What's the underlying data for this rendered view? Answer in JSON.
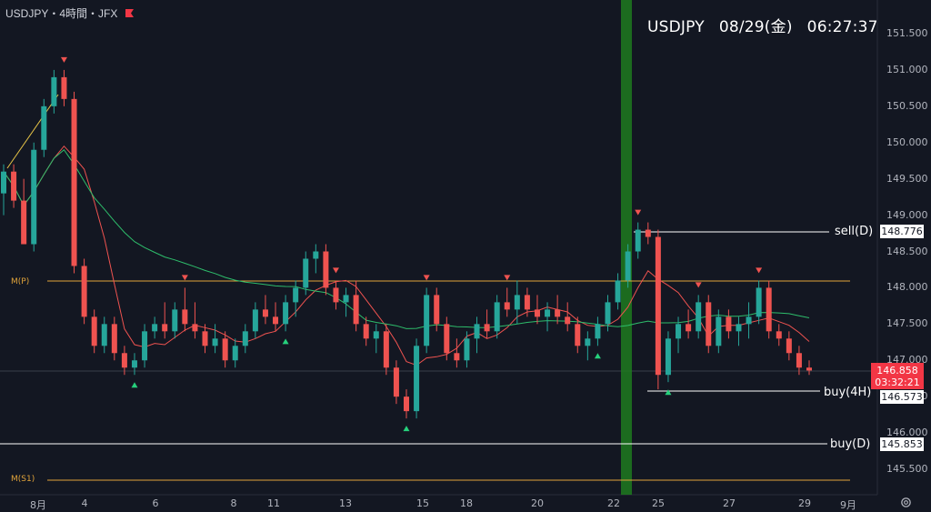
{
  "header": {
    "title": "USDJPY・4時間・JFX",
    "flag_icon": "flag-icon",
    "flag_color": "#f23645"
  },
  "clock": {
    "symbol": "USDJPY",
    "date": "08/29(金)",
    "time": "06:27:37"
  },
  "levels": {
    "sell_d": {
      "label": "sell(D)",
      "price": "148.776"
    },
    "buy_4h": {
      "label": "buy(4H)",
      "price": "146.573"
    },
    "buy_d": {
      "label": "buy(D)",
      "price": "145.853"
    },
    "m_p": {
      "label": "M(P)"
    },
    "m_s1": {
      "label": "M(S1)"
    }
  },
  "current": {
    "price": "146.858",
    "countdown": "03:32:21"
  },
  "y_axis": [
    "151.500",
    "151.000",
    "150.500",
    "150.000",
    "149.500",
    "149.000",
    "148.500",
    "148.000",
    "147.500",
    "147.000",
    "146.500",
    "146.000",
    "145.500"
  ],
  "x_axis": [
    "8月",
    "4",
    "6",
    "8",
    "11",
    "13",
    "15",
    "18",
    "20",
    "22",
    "25",
    "27",
    "29",
    "9月"
  ],
  "settings_icon": "gear-icon",
  "colors": {
    "up": "#26a69a",
    "down": "#ef5350",
    "ma_fast": "#ef5350",
    "ma_slow": "#2ebd6b",
    "highlight": "#1f7a1f",
    "pivot": "#e0a33a"
  },
  "chart_data": {
    "type": "candlestick",
    "symbol": "USDJPY",
    "timeframe": "4時間",
    "ylim": [
      145.3,
      151.8
    ],
    "candles": [
      [
        149.3,
        149.7,
        149.0,
        149.6
      ],
      [
        149.6,
        149.7,
        149.1,
        149.2
      ],
      [
        149.2,
        149.5,
        148.6,
        148.6
      ],
      [
        148.6,
        150.0,
        148.5,
        149.9
      ],
      [
        149.9,
        150.6,
        149.8,
        150.5
      ],
      [
        150.5,
        151.0,
        150.4,
        150.9
      ],
      [
        150.9,
        151.0,
        150.5,
        150.6
      ],
      [
        150.6,
        150.7,
        148.2,
        148.3
      ],
      [
        148.3,
        148.4,
        147.5,
        147.6
      ],
      [
        147.6,
        147.7,
        147.1,
        147.2
      ],
      [
        147.2,
        147.6,
        147.1,
        147.5
      ],
      [
        147.5,
        147.6,
        147.0,
        147.1
      ],
      [
        147.1,
        147.2,
        146.8,
        146.9
      ],
      [
        146.9,
        147.1,
        146.8,
        147.0
      ],
      [
        147.0,
        147.5,
        146.9,
        147.4
      ],
      [
        147.4,
        147.6,
        147.3,
        147.5
      ],
      [
        147.5,
        147.8,
        147.3,
        147.4
      ],
      [
        147.4,
        147.8,
        147.3,
        147.7
      ],
      [
        147.7,
        148.0,
        147.4,
        147.5
      ],
      [
        147.5,
        147.8,
        147.3,
        147.4
      ],
      [
        147.4,
        147.5,
        147.1,
        147.2
      ],
      [
        147.2,
        147.5,
        147.1,
        147.3
      ],
      [
        147.3,
        147.4,
        146.9,
        147.0
      ],
      [
        147.0,
        147.3,
        146.9,
        147.2
      ],
      [
        147.2,
        147.5,
        147.1,
        147.4
      ],
      [
        147.4,
        147.8,
        147.3,
        147.7
      ],
      [
        147.7,
        147.9,
        147.5,
        147.6
      ],
      [
        147.6,
        147.8,
        147.4,
        147.5
      ],
      [
        147.5,
        147.9,
        147.4,
        147.8
      ],
      [
        147.8,
        148.1,
        147.6,
        148.0
      ],
      [
        148.0,
        148.5,
        147.9,
        148.4
      ],
      [
        148.4,
        148.6,
        148.2,
        148.5
      ],
      [
        148.5,
        148.6,
        147.9,
        148.0
      ],
      [
        148.0,
        148.1,
        147.7,
        147.8
      ],
      [
        147.8,
        148.0,
        147.6,
        147.9
      ],
      [
        147.9,
        148.1,
        147.4,
        147.5
      ],
      [
        147.5,
        147.6,
        147.2,
        147.3
      ],
      [
        147.3,
        147.5,
        147.1,
        147.4
      ],
      [
        147.4,
        147.5,
        146.8,
        146.9
      ],
      [
        146.9,
        147.0,
        146.4,
        146.5
      ],
      [
        146.5,
        146.6,
        146.2,
        146.3
      ],
      [
        146.3,
        147.3,
        146.2,
        147.2
      ],
      [
        147.2,
        148.0,
        147.1,
        147.9
      ],
      [
        147.9,
        148.0,
        147.4,
        147.5
      ],
      [
        147.5,
        147.6,
        147.0,
        147.1
      ],
      [
        147.1,
        147.3,
        146.9,
        147.0
      ],
      [
        147.0,
        147.4,
        146.9,
        147.3
      ],
      [
        147.3,
        147.6,
        147.1,
        147.5
      ],
      [
        147.5,
        147.7,
        147.3,
        147.4
      ],
      [
        147.4,
        147.9,
        147.3,
        147.8
      ],
      [
        147.8,
        148.0,
        147.6,
        147.7
      ],
      [
        147.7,
        148.1,
        147.5,
        147.9
      ],
      [
        147.9,
        148.0,
        147.6,
        147.7
      ],
      [
        147.7,
        147.9,
        147.5,
        147.6
      ],
      [
        147.6,
        147.8,
        147.4,
        147.7
      ],
      [
        147.7,
        147.9,
        147.5,
        147.6
      ],
      [
        147.6,
        147.8,
        147.4,
        147.5
      ],
      [
        147.5,
        147.6,
        147.1,
        147.2
      ],
      [
        147.2,
        147.4,
        147.0,
        147.3
      ],
      [
        147.3,
        147.6,
        147.2,
        147.5
      ],
      [
        147.5,
        147.9,
        147.4,
        147.8
      ],
      [
        147.8,
        148.2,
        147.7,
        148.1
      ],
      [
        148.1,
        148.6,
        148.0,
        148.5
      ],
      [
        148.5,
        148.9,
        148.4,
        148.8
      ],
      [
        148.8,
        148.9,
        148.6,
        148.7
      ],
      [
        148.7,
        148.8,
        146.6,
        146.8
      ],
      [
        146.8,
        147.4,
        146.7,
        147.3
      ],
      [
        147.3,
        147.6,
        147.1,
        147.5
      ],
      [
        147.5,
        147.7,
        147.3,
        147.4
      ],
      [
        147.4,
        147.9,
        147.3,
        147.8
      ],
      [
        147.8,
        147.9,
        147.1,
        147.2
      ],
      [
        147.2,
        147.7,
        147.1,
        147.6
      ],
      [
        147.6,
        147.7,
        147.3,
        147.4
      ],
      [
        147.4,
        147.6,
        147.2,
        147.5
      ],
      [
        147.5,
        147.8,
        147.3,
        147.6
      ],
      [
        147.6,
        148.1,
        147.5,
        148.0
      ],
      [
        148.0,
        148.1,
        147.3,
        147.4
      ],
      [
        147.4,
        147.5,
        147.2,
        147.3
      ],
      [
        147.3,
        147.4,
        147.0,
        147.1
      ],
      [
        147.1,
        147.2,
        146.8,
        146.9
      ],
      [
        146.9,
        147.0,
        146.8,
        146.86
      ]
    ],
    "markers_up_idx": [
      13,
      28,
      40,
      59,
      66
    ],
    "markers_down_idx": [
      6,
      18,
      33,
      42,
      50,
      63,
      69,
      75
    ]
  }
}
